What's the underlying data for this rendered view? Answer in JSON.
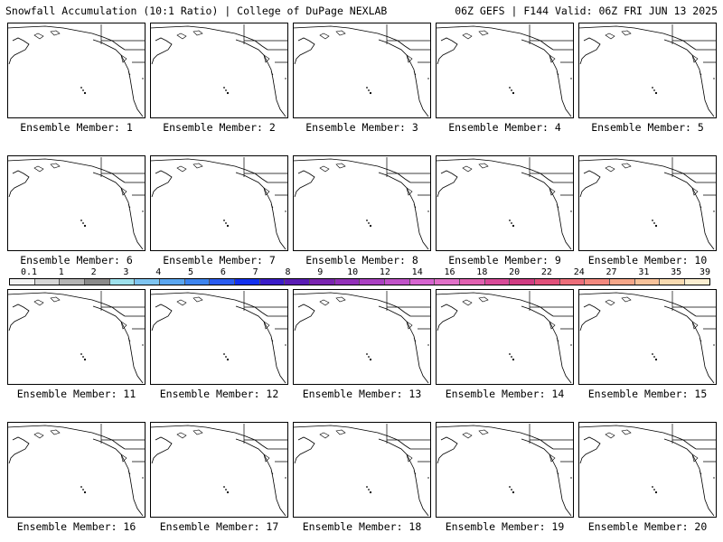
{
  "header": {
    "title": "Snowfall Accumulation (10:1 Ratio) | College of DuPage NEXLAB",
    "run_info": "06Z GEFS | F144 Valid: 06Z FRI JUN 13 2025"
  },
  "panels": [
    {
      "label": "Ensemble Member: 1"
    },
    {
      "label": "Ensemble Member: 2"
    },
    {
      "label": "Ensemble Member: 3"
    },
    {
      "label": "Ensemble Member: 4"
    },
    {
      "label": "Ensemble Member: 5"
    },
    {
      "label": "Ensemble Member: 6"
    },
    {
      "label": "Ensemble Member: 7"
    },
    {
      "label": "Ensemble Member: 8"
    },
    {
      "label": "Ensemble Member: 9"
    },
    {
      "label": "Ensemble Member: 10"
    },
    {
      "label": "Ensemble Member: 11"
    },
    {
      "label": "Ensemble Member: 12"
    },
    {
      "label": "Ensemble Member: 13"
    },
    {
      "label": "Ensemble Member: 14"
    },
    {
      "label": "Ensemble Member: 15"
    },
    {
      "label": "Ensemble Member: 16"
    },
    {
      "label": "Ensemble Member: 17"
    },
    {
      "label": "Ensemble Member: 18"
    },
    {
      "label": "Ensemble Member: 19"
    },
    {
      "label": "Ensemble Member: 20"
    }
  ],
  "colorbar": {
    "labels": [
      "0.1",
      "1",
      "2",
      "3",
      "4",
      "5",
      "6",
      "7",
      "8",
      "9",
      "10",
      "12",
      "14",
      "16",
      "18",
      "20",
      "22",
      "24",
      "27",
      "31",
      "35",
      "39"
    ],
    "colors": [
      "#f2f2f2",
      "#d6d6d6",
      "#b4b4b4",
      "#8a8a8a",
      "#9de0ec",
      "#7ec4f0",
      "#5aa6f0",
      "#3d84ee",
      "#2a5cf0",
      "#1230ee",
      "#3a1cc8",
      "#5a1cb4",
      "#7a24b0",
      "#9230b8",
      "#aa40c2",
      "#c052c8",
      "#d664d0",
      "#e070c8",
      "#e060b0",
      "#d84a98",
      "#d03c82",
      "#e0507a",
      "#ec6e7a",
      "#f2887e",
      "#f5a688",
      "#f7c29a",
      "#f8dab0",
      "#fbeed0"
    ]
  }
}
